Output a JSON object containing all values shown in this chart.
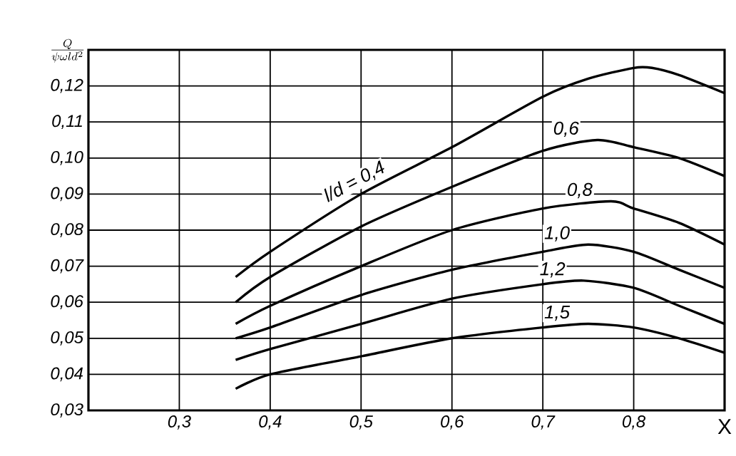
{
  "chart_data": {
    "type": "line",
    "ylabel": "\\frac{Q}{\\psi\\omega l d^{2}}",
    "xlabel": "X",
    "xlim": [
      0.2,
      0.9
    ],
    "ylim": [
      0.03,
      0.13
    ],
    "xticks": [
      {
        "value": 0.3,
        "label": "0,3"
      },
      {
        "value": 0.4,
        "label": "0,4"
      },
      {
        "value": 0.5,
        "label": "0,5"
      },
      {
        "value": 0.6,
        "label": "0,6"
      },
      {
        "value": 0.7,
        "label": "0,7"
      },
      {
        "value": 0.8,
        "label": "0,8"
      }
    ],
    "yticks": [
      {
        "value": 0.03,
        "label": "0,03"
      },
      {
        "value": 0.04,
        "label": "0,04"
      },
      {
        "value": 0.05,
        "label": "0,05"
      },
      {
        "value": 0.06,
        "label": "0,06"
      },
      {
        "value": 0.07,
        "label": "0,07"
      },
      {
        "value": 0.08,
        "label": "0,08"
      },
      {
        "value": 0.09,
        "label": "0,09"
      },
      {
        "value": 0.1,
        "label": "0,10"
      },
      {
        "value": 0.11,
        "label": "0,11"
      },
      {
        "value": 0.12,
        "label": "0,12"
      }
    ],
    "grid": true,
    "series": [
      {
        "name": "l/d = 0,4",
        "color": "#000000",
        "x": [
          0.362,
          0.4,
          0.5,
          0.6,
          0.7,
          0.75,
          0.8,
          0.82,
          0.85,
          0.9
        ],
        "values": [
          0.067,
          0.074,
          0.09,
          0.103,
          0.117,
          0.122,
          0.125,
          0.125,
          0.123,
          0.118
        ]
      },
      {
        "name": "0,6",
        "color": "#000000",
        "x": [
          0.362,
          0.4,
          0.5,
          0.6,
          0.7,
          0.76,
          0.8,
          0.85,
          0.9
        ],
        "values": [
          0.06,
          0.067,
          0.081,
          0.092,
          0.102,
          0.105,
          0.103,
          0.1,
          0.095
        ]
      },
      {
        "name": "0,8",
        "color": "#000000",
        "x": [
          0.362,
          0.4,
          0.5,
          0.6,
          0.7,
          0.775,
          0.8,
          0.85,
          0.9
        ],
        "values": [
          0.054,
          0.059,
          0.07,
          0.08,
          0.086,
          0.088,
          0.086,
          0.082,
          0.076
        ]
      },
      {
        "name": "1,0",
        "color": "#000000",
        "x": [
          0.362,
          0.4,
          0.5,
          0.6,
          0.7,
          0.75,
          0.8,
          0.85,
          0.9
        ],
        "values": [
          0.05,
          0.053,
          0.062,
          0.069,
          0.074,
          0.076,
          0.074,
          0.069,
          0.064
        ]
      },
      {
        "name": "1,2",
        "color": "#000000",
        "x": [
          0.362,
          0.4,
          0.5,
          0.6,
          0.7,
          0.745,
          0.8,
          0.85,
          0.9
        ],
        "values": [
          0.044,
          0.047,
          0.054,
          0.061,
          0.065,
          0.066,
          0.064,
          0.059,
          0.054
        ]
      },
      {
        "name": "1,5",
        "color": "#000000",
        "x": [
          0.362,
          0.4,
          0.5,
          0.6,
          0.7,
          0.75,
          0.8,
          0.85,
          0.9
        ],
        "values": [
          0.036,
          0.04,
          0.045,
          0.05,
          0.053,
          0.054,
          0.053,
          0.05,
          0.046
        ]
      }
    ]
  }
}
